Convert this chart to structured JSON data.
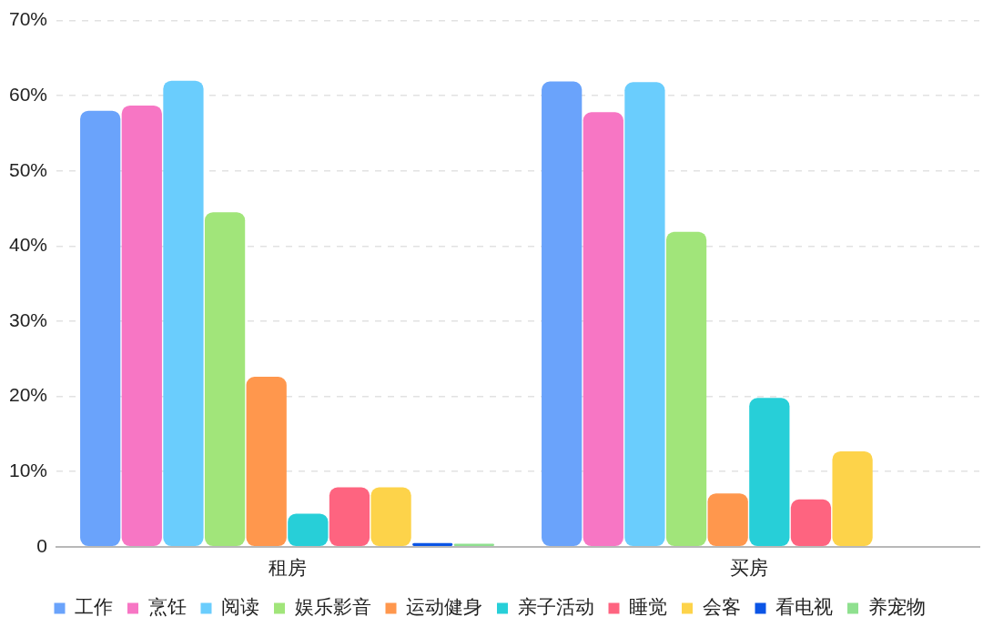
{
  "chart_data": {
    "type": "bar",
    "categories": [
      "租房",
      "买房"
    ],
    "series": [
      {
        "name": "工作",
        "color": "#6aa3fb",
        "values": [
          58.0,
          61.9
        ]
      },
      {
        "name": "烹饪",
        "color": "#f776c4",
        "values": [
          58.7,
          57.8
        ]
      },
      {
        "name": "阅读",
        "color": "#6acdfd",
        "values": [
          62.0,
          61.8
        ]
      },
      {
        "name": "娱乐影音",
        "color": "#a1e57a",
        "values": [
          44.5,
          41.9
        ]
      },
      {
        "name": "运动健身",
        "color": "#ff974d",
        "values": [
          22.6,
          7.1
        ]
      },
      {
        "name": "亲子活动",
        "color": "#27cfd8",
        "values": [
          4.4,
          19.8
        ]
      },
      {
        "name": "睡觉",
        "color": "#fe6480",
        "values": [
          7.9,
          6.3
        ]
      },
      {
        "name": "会客",
        "color": "#fdd34a",
        "values": [
          7.9,
          12.7
        ]
      },
      {
        "name": "看电视",
        "color": "#0b55e6",
        "values": [
          0.5,
          null
        ]
      },
      {
        "name": "养宠物",
        "color": "#8fe08f",
        "values": [
          0.4,
          null
        ]
      }
    ],
    "ylim": [
      0,
      70
    ],
    "yticks": [
      0,
      {
        "value": 10,
        "label": "10%"
      },
      {
        "value": 20,
        "label": "20%"
      },
      {
        "value": 30,
        "label": "30%"
      },
      {
        "value": 40,
        "label": "40%"
      },
      {
        "value": 50,
        "label": "50%"
      },
      {
        "value": 60,
        "label": "60%"
      },
      {
        "value": 70,
        "label": "70%"
      }
    ],
    "grid": "y",
    "legend": "bottom"
  }
}
